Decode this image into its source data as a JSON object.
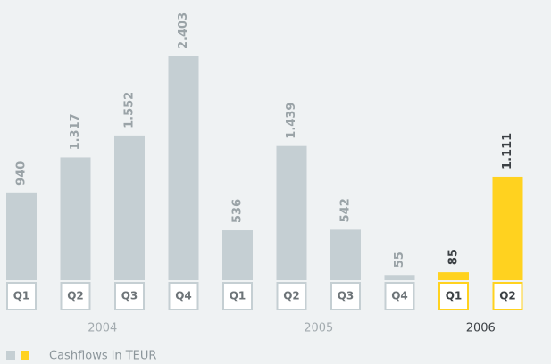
{
  "chart_data": {
    "type": "bar",
    "legend_label": "Cashflows in TEUR",
    "groups": [
      {
        "name": "2004",
        "color": "#c5cfd3",
        "categories": [
          "Q1",
          "Q2",
          "Q3",
          "Q4"
        ],
        "values": [
          940,
          1317,
          1552,
          2403
        ],
        "value_labels": [
          "940",
          "1.317",
          "1.552",
          "2.403"
        ]
      },
      {
        "name": "2005",
        "color": "#c5cfd3",
        "categories": [
          "Q1",
          "Q2",
          "Q3",
          "Q4"
        ],
        "values": [
          536,
          1439,
          542,
          55
        ],
        "value_labels": [
          "536",
          "1.439",
          "542",
          "55"
        ]
      },
      {
        "name": "2006",
        "color": "#ffd21f",
        "categories": [
          "Q1",
          "Q2"
        ],
        "values": [
          85,
          1111
        ],
        "value_labels": [
          "85",
          "1.111"
        ]
      }
    ]
  }
}
